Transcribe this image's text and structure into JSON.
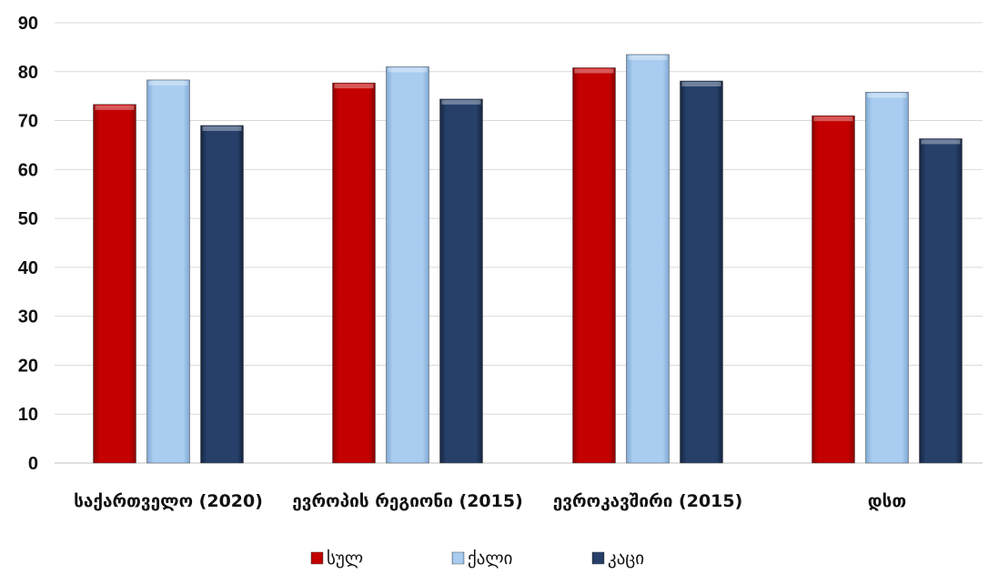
{
  "chart_data": {
    "type": "bar",
    "categories": [
      "საქართველო (2020)",
      "ევროპის რეგიონი (2015)",
      "ევროკავშირი (2015)",
      "დსთ"
    ],
    "series": [
      {
        "name": "სულ",
        "values": [
          73.3,
          77.7,
          80.8,
          71.0
        ],
        "color": "#c00000"
      },
      {
        "name": "ქალი",
        "values": [
          78.3,
          81.0,
          83.5,
          75.8
        ],
        "color": "#a9cdf0"
      },
      {
        "name": "კაცი",
        "values": [
          69.0,
          74.4,
          78.1,
          66.3
        ],
        "color": "#23395f"
      }
    ],
    "yticks": [
      0,
      10,
      20,
      30,
      40,
      50,
      60,
      70,
      80,
      90
    ],
    "ylim": [
      0,
      90
    ],
    "grid": true,
    "legend_position": "bottom-center"
  }
}
